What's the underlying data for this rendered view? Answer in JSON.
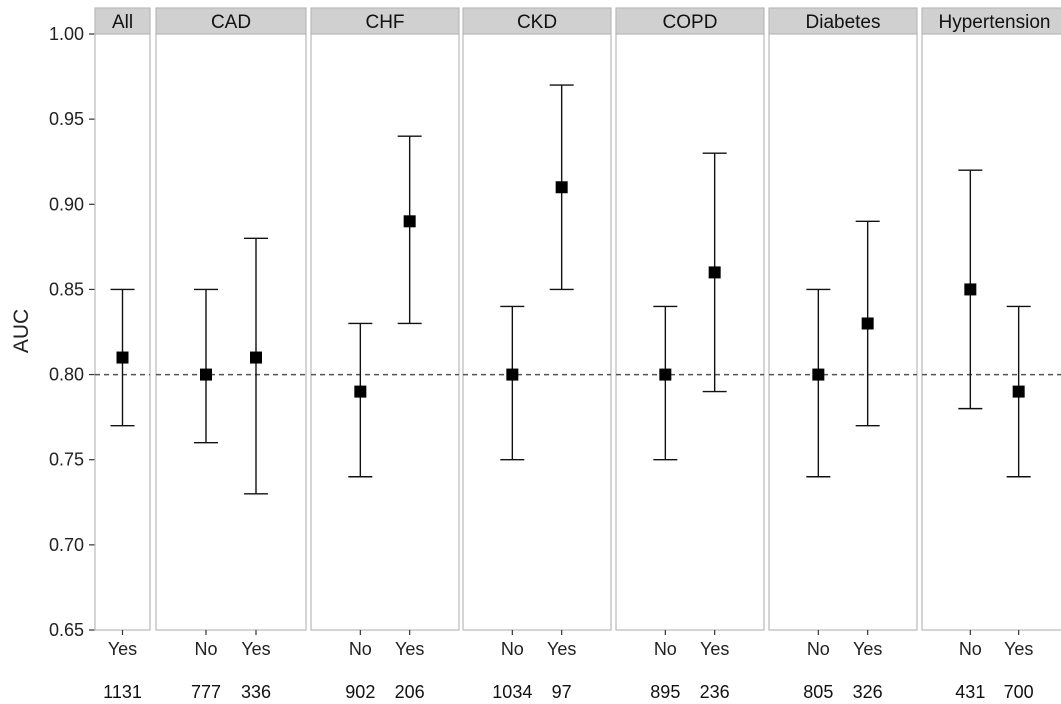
{
  "chart_data": {
    "type": "scatter",
    "ylabel": "AUC",
    "ylim": [
      0.65,
      1.0
    ],
    "yticks": [
      "0.65",
      "0.70",
      "0.75",
      "0.80",
      "0.85",
      "0.90",
      "0.95",
      "1.00"
    ],
    "reference_line": 0.8,
    "grid": false,
    "panels": [
      {
        "name": "All",
        "points": [
          {
            "group": "Yes",
            "n": "1131",
            "auc": 0.81,
            "lower": 0.77,
            "upper": 0.85
          }
        ]
      },
      {
        "name": "CAD",
        "points": [
          {
            "group": "No",
            "n": "777",
            "auc": 0.8,
            "lower": 0.76,
            "upper": 0.85
          },
          {
            "group": "Yes",
            "n": "336",
            "auc": 0.81,
            "lower": 0.73,
            "upper": 0.88
          }
        ]
      },
      {
        "name": "CHF",
        "points": [
          {
            "group": "No",
            "n": "902",
            "auc": 0.79,
            "lower": 0.74,
            "upper": 0.83
          },
          {
            "group": "Yes",
            "n": "206",
            "auc": 0.89,
            "lower": 0.83,
            "upper": 0.94
          }
        ]
      },
      {
        "name": "CKD",
        "points": [
          {
            "group": "No",
            "n": "1034",
            "auc": 0.8,
            "lower": 0.75,
            "upper": 0.84
          },
          {
            "group": "Yes",
            "n": "97",
            "auc": 0.91,
            "lower": 0.85,
            "upper": 0.97
          }
        ]
      },
      {
        "name": "COPD",
        "points": [
          {
            "group": "No",
            "n": "895",
            "auc": 0.8,
            "lower": 0.75,
            "upper": 0.84
          },
          {
            "group": "Yes",
            "n": "236",
            "auc": 0.86,
            "lower": 0.79,
            "upper": 0.93
          }
        ]
      },
      {
        "name": "Diabetes",
        "points": [
          {
            "group": "No",
            "n": "805",
            "auc": 0.8,
            "lower": 0.74,
            "upper": 0.85
          },
          {
            "group": "Yes",
            "n": "326",
            "auc": 0.83,
            "lower": 0.77,
            "upper": 0.89
          }
        ]
      },
      {
        "name": "Hypertension",
        "points": [
          {
            "group": "No",
            "n": "431",
            "auc": 0.85,
            "lower": 0.78,
            "upper": 0.92
          },
          {
            "group": "Yes",
            "n": "700",
            "auc": 0.79,
            "lower": 0.74,
            "upper": 0.84
          }
        ]
      }
    ]
  }
}
